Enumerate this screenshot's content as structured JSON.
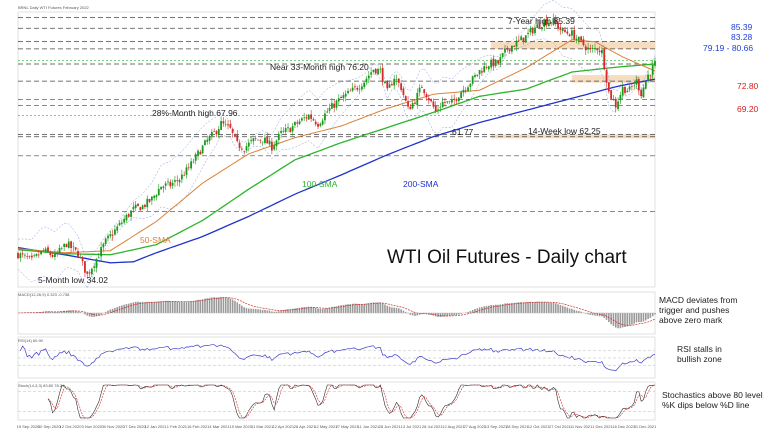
{
  "header": {
    "symbol_line": "BRNL Daily WTI Futures February 2022",
    "macd_header": "MACD(12,26,9) 0.323 -0.738",
    "rsi_header": "RSI(14) 60.90",
    "stoch_header": "Stoch(14,3,3) 83.80 78.24"
  },
  "chart_data": {
    "type": "candlestick",
    "title": "WTI Oil Futures - Daily chart",
    "x_tick_labels": [
      "15 Sep 2020",
      "30 Sep 2020",
      "12 Oct 2020",
      "3 Nov 2020",
      "30 Nov 2020",
      "17 Dec 2020",
      "12 Jan 2021",
      "1 Feb 2021",
      "16 Feb 2021",
      "4 Mar 2021",
      "19 Mar 2021",
      "31 Mar 2021",
      "12 Apr 2021",
      "28 Apr 2021",
      "12 May 2021",
      "27 May 2021",
      "11 Jun 2021",
      "28 Jun 2021",
      "13 Jul 2021",
      "28 Jul 2021",
      "12 Aug 2021",
      "27 Aug 2021",
      "13 Sep 2021",
      "28 Sep 2021",
      "12 Oct 2021",
      "27 Oct 2021",
      "11 Nov 2021",
      "1 Dec 2021",
      "16 Dec 2021",
      "31 Dec 2021"
    ],
    "price_path": [
      [
        0,
        38.5
      ],
      [
        6,
        37.2
      ],
      [
        11,
        39.2
      ],
      [
        16,
        38.0
      ],
      [
        21,
        40.6
      ],
      [
        26,
        38.6
      ],
      [
        30,
        34.4
      ],
      [
        34,
        37.6
      ],
      [
        38,
        41.0
      ],
      [
        42,
        43.2
      ],
      [
        46,
        45.4
      ],
      [
        50,
        47.4
      ],
      [
        54,
        48.0
      ],
      [
        58,
        49.4
      ],
      [
        62,
        52.0
      ],
      [
        66,
        52.2
      ],
      [
        70,
        53.4
      ],
      [
        74,
        55.6
      ],
      [
        78,
        58.4
      ],
      [
        82,
        61.0
      ],
      [
        86,
        63.0
      ],
      [
        88,
        64.4
      ],
      [
        92,
        63.2
      ],
      [
        95,
        60.2
      ],
      [
        98,
        59.6
      ],
      [
        102,
        61.0
      ],
      [
        106,
        61.4
      ],
      [
        110,
        59.8
      ],
      [
        114,
        62.4
      ],
      [
        118,
        63.4
      ],
      [
        122,
        64.8
      ],
      [
        126,
        66.0
      ],
      [
        130,
        64.4
      ],
      [
        134,
        66.8
      ],
      [
        138,
        68.6
      ],
      [
        142,
        70.0
      ],
      [
        146,
        71.2
      ],
      [
        150,
        72.8
      ],
      [
        154,
        75.2
      ],
      [
        157,
        74.8
      ],
      [
        160,
        70.6
      ],
      [
        163,
        73.6
      ],
      [
        166,
        71.6
      ],
      [
        169,
        67.2
      ],
      [
        172,
        69.0
      ],
      [
        175,
        71.8
      ],
      [
        178,
        69.4
      ],
      [
        181,
        66.8
      ],
      [
        184,
        68.6
      ],
      [
        188,
        68.4
      ],
      [
        192,
        70.8
      ],
      [
        196,
        72.6
      ],
      [
        200,
        74.8
      ],
      [
        204,
        76.2
      ],
      [
        208,
        76.4
      ],
      [
        212,
        79.2
      ],
      [
        216,
        80.4
      ],
      [
        220,
        81.6
      ],
      [
        224,
        83.4
      ],
      [
        228,
        84.6
      ],
      [
        232,
        84.6
      ],
      [
        236,
        82.6
      ],
      [
        240,
        82.2
      ],
      [
        244,
        80.4
      ],
      [
        248,
        78.8
      ],
      [
        251,
        79.4
      ],
      [
        253,
        78.6
      ],
      [
        256,
        70.6
      ],
      [
        259,
        68.0
      ],
      [
        262,
        71.4
      ],
      [
        265,
        71.0
      ],
      [
        268,
        72.8
      ],
      [
        270,
        70.4
      ],
      [
        273,
        74.0
      ],
      [
        276,
        76.2
      ]
    ],
    "price_range": [
      32.0,
      86.5
    ],
    "sma_50": [
      [
        0,
        39.6
      ],
      [
        20,
        38.8
      ],
      [
        40,
        39.2
      ],
      [
        60,
        45.0
      ],
      [
        80,
        52.6
      ],
      [
        100,
        58.4
      ],
      [
        120,
        61.6
      ],
      [
        140,
        63.9
      ],
      [
        160,
        67.4
      ],
      [
        180,
        70.2
      ],
      [
        200,
        71.0
      ],
      [
        220,
        75.4
      ],
      [
        240,
        81.0
      ],
      [
        250,
        80.6
      ],
      [
        262,
        77.6
      ],
      [
        276,
        74.8
      ]
    ],
    "sma_100": [
      [
        0,
        39.4
      ],
      [
        20,
        38.6
      ],
      [
        40,
        38.4
      ],
      [
        60,
        40.4
      ],
      [
        80,
        45.2
      ],
      [
        100,
        51.4
      ],
      [
        120,
        57.2
      ],
      [
        140,
        60.6
      ],
      [
        160,
        63.6
      ],
      [
        180,
        66.6
      ],
      [
        200,
        69.8
      ],
      [
        220,
        71.2
      ],
      [
        240,
        74.6
      ],
      [
        260,
        75.6
      ],
      [
        276,
        76.2
      ]
    ],
    "sma_200": [
      [
        0,
        39.8
      ],
      [
        20,
        38.4
      ],
      [
        40,
        36.8
      ],
      [
        50,
        37.0
      ],
      [
        60,
        38.8
      ],
      [
        80,
        42.0
      ],
      [
        100,
        46.0
      ],
      [
        120,
        50.4
      ],
      [
        140,
        54.2
      ],
      [
        160,
        58.2
      ],
      [
        180,
        61.8
      ],
      [
        200,
        64.6
      ],
      [
        220,
        67.0
      ],
      [
        240,
        69.4
      ],
      [
        260,
        71.8
      ],
      [
        276,
        73.2
      ]
    ],
    "horizontal_levels": [
      85.39,
      83.28,
      79.19,
      80.66,
      76.2,
      72.8,
      69.2,
      67.96,
      62.25,
      61.77
    ],
    "zones": [
      [
        79.19,
        80.66
      ],
      [
        61.77,
        62.25
      ]
    ],
    "price_annotations": [
      {
        "label": "7-Year high 85.39",
        "idx": 230,
        "value": 85.39
      },
      {
        "label": "Near 33-Month high 76.20",
        "idx": 154,
        "value": 76.2
      },
      {
        "label": "28%-Month high 67.96",
        "idx": 88,
        "value": 67.96
      },
      {
        "label": "61.77",
        "idx": 181,
        "value": 61.77
      },
      {
        "label": "14-Week low 62.25",
        "idx": 259,
        "value": 62.25
      },
      {
        "label": "5-Month low 34.02",
        "idx": 30,
        "value": 34.02
      }
    ],
    "level_labels": [
      {
        "text": "85.39",
        "value": 85.39,
        "color": "#1f3fd6"
      },
      {
        "text": "83.28",
        "value": 83.28,
        "color": "#1f3fd6"
      },
      {
        "text": "79.19 - 80.66",
        "value": 80.6,
        "color": "#1f3fd6"
      },
      {
        "text": "72.80",
        "value": 72.8,
        "color": "#d62020"
      },
      {
        "text": "69.20",
        "value": 69.2,
        "color": "#d62020"
      }
    ],
    "sma_labels": [
      {
        "text": "50-SMA",
        "color": "#d9823a"
      },
      {
        "text": "100-SMA",
        "color": "#2bb52b"
      },
      {
        "text": "200-SMA",
        "color": "#2233cc"
      }
    ],
    "macd_notes": [
      "MACD deviates from",
      "trigger and pushes",
      "above zero mark"
    ],
    "rsi_notes": [
      "RSI stalls in",
      "bullish zone"
    ],
    "stoch_notes": [
      "Stochastics above 80 level",
      "%K dips below %D line"
    ],
    "colors": {
      "up": "#1a9a1a",
      "down": "#d42a2a",
      "zone": "#f6d7b4",
      "sma50": "#d9823a",
      "sma100": "#2bb52b",
      "sma200": "#2233cc",
      "bands": "#8e9ad8"
    }
  }
}
